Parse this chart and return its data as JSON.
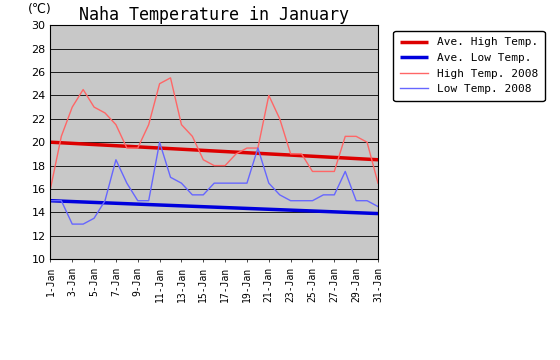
{
  "title": "Naha Temperature in January",
  "ylabel": "(℃)",
  "ylim": [
    10,
    30
  ],
  "yticks": [
    10,
    12,
    14,
    16,
    18,
    20,
    22,
    24,
    26,
    28,
    30
  ],
  "xtick_positions": [
    1,
    3,
    5,
    7,
    9,
    11,
    13,
    15,
    17,
    19,
    21,
    23,
    25,
    27,
    29,
    31
  ],
  "xtick_labels": [
    "1-Jan",
    "3-Jan",
    "5-Jan",
    "7-Jan",
    "9-Jan",
    "11-Jan",
    "13-Jan",
    "15-Jan",
    "17-Jan",
    "19-Jan",
    "21-Jan",
    "23-Jan",
    "25-Jan",
    "27-Jan",
    "29-Jan",
    "31-Jan"
  ],
  "ave_high": {
    "x": [
      1,
      31
    ],
    "values": [
      20.0,
      18.5
    ],
    "color": "#dd0000",
    "linewidth": 2.5,
    "label": "Ave. High Temp."
  },
  "ave_low": {
    "x": [
      1,
      31
    ],
    "values": [
      15.0,
      13.9
    ],
    "color": "#0000dd",
    "linewidth": 2.5,
    "label": "Ave. Low Temp."
  },
  "high_2008": {
    "x": [
      1,
      2,
      3,
      4,
      5,
      6,
      7,
      8,
      9,
      10,
      11,
      12,
      13,
      14,
      15,
      16,
      17,
      18,
      19,
      20,
      21,
      22,
      23,
      24,
      25,
      26,
      27,
      28,
      29,
      30,
      31
    ],
    "values": [
      16.0,
      20.5,
      23.0,
      24.5,
      23.0,
      22.5,
      21.5,
      19.5,
      19.5,
      21.5,
      25.0,
      25.5,
      21.5,
      20.5,
      18.5,
      18.0,
      18.0,
      19.0,
      19.5,
      19.5,
      24.0,
      22.0,
      19.0,
      19.0,
      17.5,
      17.5,
      17.5,
      20.5,
      20.5,
      20.0,
      16.5
    ],
    "color": "#ff6666",
    "linewidth": 1.0,
    "label": "High Temp. 2008"
  },
  "low_2008": {
    "x": [
      1,
      2,
      3,
      4,
      5,
      6,
      7,
      8,
      9,
      10,
      11,
      12,
      13,
      14,
      15,
      16,
      17,
      18,
      19,
      20,
      21,
      22,
      23,
      24,
      25,
      26,
      27,
      28,
      29,
      30,
      31
    ],
    "values": [
      15.0,
      15.0,
      13.0,
      13.0,
      13.5,
      15.0,
      18.5,
      16.5,
      15.0,
      15.0,
      20.0,
      17.0,
      16.5,
      15.5,
      15.5,
      16.5,
      16.5,
      16.5,
      16.5,
      19.5,
      16.5,
      15.5,
      15.0,
      15.0,
      15.0,
      15.5,
      15.5,
      17.5,
      15.0,
      15.0,
      14.5
    ],
    "color": "#6666ff",
    "linewidth": 1.0,
    "label": "Low Temp. 2008"
  },
  "plot_bg_color": "#c8c8c8",
  "fig_bg_color": "#ffffff",
  "grid_color": "#000000",
  "title_fontsize": 12,
  "tick_fontsize": 8,
  "legend_fontsize": 8
}
